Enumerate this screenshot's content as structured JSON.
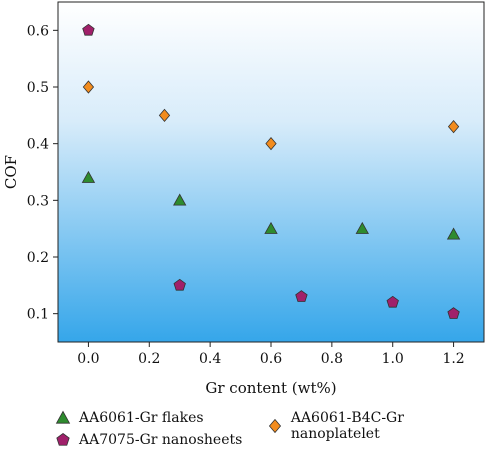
{
  "chart_data": {
    "type": "scatter",
    "title": "",
    "xlabel": "Gr content (wt%)",
    "ylabel": "COF",
    "xlim": [
      -0.1,
      1.3
    ],
    "ylim": [
      0.05,
      0.65
    ],
    "xticks": [
      "0.0",
      "0.2",
      "0.4",
      "0.6",
      "0.8",
      "1.0",
      "1.2"
    ],
    "yticks": [
      "0.1",
      "0.2",
      "0.3",
      "0.4",
      "0.5",
      "0.6"
    ],
    "background": "gradient white (top) to blue (bottom)",
    "legend_position": "bottom",
    "series": [
      {
        "name": "AA6061-Gr flakes",
        "marker": "triangle",
        "color": "#2e8b2e",
        "points": [
          [
            0.0,
            0.34
          ],
          [
            0.3,
            0.3
          ],
          [
            0.6,
            0.25
          ],
          [
            0.9,
            0.25
          ],
          [
            1.2,
            0.24
          ]
        ]
      },
      {
        "name": "AA6061-B4C-Gr nanoplatelet",
        "marker": "diamond",
        "color": "#f28c1e",
        "points": [
          [
            0.0,
            0.5
          ],
          [
            0.25,
            0.45
          ],
          [
            0.6,
            0.4
          ],
          [
            1.2,
            0.43
          ]
        ]
      },
      {
        "name": "AA7075-Gr nanosheets",
        "marker": "pentagon",
        "color": "#a0206a",
        "points": [
          [
            0.0,
            0.6
          ],
          [
            0.3,
            0.15
          ],
          [
            0.7,
            0.13
          ],
          [
            1.0,
            0.12
          ],
          [
            1.2,
            0.1
          ]
        ]
      }
    ]
  }
}
